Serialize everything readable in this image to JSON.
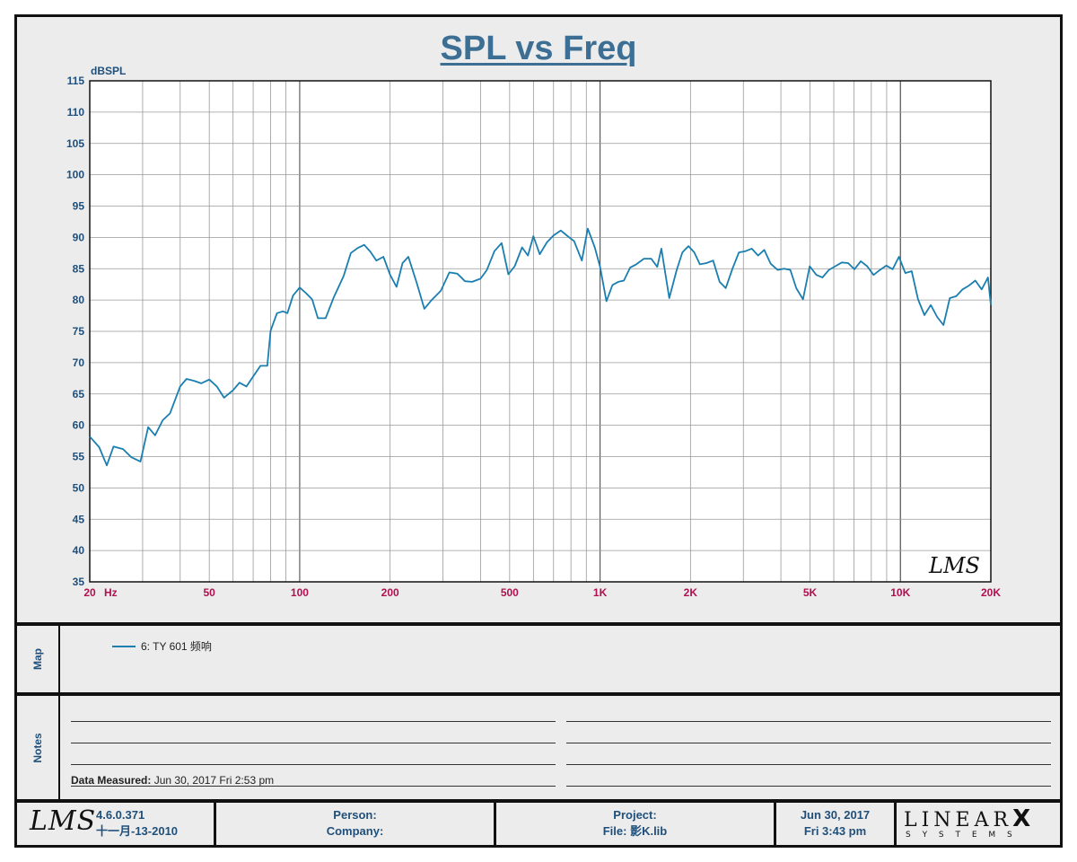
{
  "title": "SPL vs Freq",
  "chart_data": {
    "type": "line",
    "title": "SPL vs Freq",
    "ylabel": "dBSPL",
    "xlabel": "Hz",
    "x_scale": "log",
    "xlim": [
      20,
      20000
    ],
    "ylim": [
      35,
      115
    ],
    "y_ticks": [
      35,
      40,
      45,
      50,
      55,
      60,
      65,
      70,
      75,
      80,
      85,
      90,
      95,
      100,
      105,
      110,
      115
    ],
    "x_ticks": [
      {
        "value": 20,
        "label": "20"
      },
      {
        "value": 50,
        "label": "50"
      },
      {
        "value": 100,
        "label": "100"
      },
      {
        "value": 200,
        "label": "200"
      },
      {
        "value": 500,
        "label": "500"
      },
      {
        "value": 1000,
        "label": "1K"
      },
      {
        "value": 2000,
        "label": "2K"
      },
      {
        "value": 5000,
        "label": "5K"
      },
      {
        "value": 10000,
        "label": "10K"
      },
      {
        "value": 20000,
        "label": "20K"
      }
    ],
    "grid": true,
    "series": [
      {
        "name": "6: TY 601 频响",
        "color": "#1a7fb0",
        "points": [
          [
            20,
            58.2
          ],
          [
            21.5,
            56.5
          ],
          [
            22.8,
            53.6
          ],
          [
            24,
            56.6
          ],
          [
            25.8,
            56.2
          ],
          [
            27.5,
            54.9
          ],
          [
            29.5,
            54.2
          ],
          [
            31.3,
            59.7
          ],
          [
            33,
            58.4
          ],
          [
            35,
            60.8
          ],
          [
            37,
            61.9
          ],
          [
            40,
            66.2
          ],
          [
            42,
            67.4
          ],
          [
            44.5,
            67.1
          ],
          [
            47,
            66.7
          ],
          [
            50,
            67.3
          ],
          [
            53,
            66.2
          ],
          [
            56,
            64.4
          ],
          [
            60,
            65.6
          ],
          [
            63,
            66.8
          ],
          [
            66.5,
            66.2
          ],
          [
            70,
            67.8
          ],
          [
            74,
            69.5
          ],
          [
            78,
            69.5
          ],
          [
            80,
            75.1
          ],
          [
            84,
            77.9
          ],
          [
            88,
            78.2
          ],
          [
            91,
            77.9
          ],
          [
            95,
            80.7
          ],
          [
            100,
            82.0
          ],
          [
            105,
            81.1
          ],
          [
            110,
            80.1
          ],
          [
            115,
            77.1
          ],
          [
            122,
            77.1
          ],
          [
            130,
            80.5
          ],
          [
            140,
            83.8
          ],
          [
            148,
            87.5
          ],
          [
            156,
            88.3
          ],
          [
            164,
            88.8
          ],
          [
            172,
            87.7
          ],
          [
            180,
            86.3
          ],
          [
            190,
            86.9
          ],
          [
            200,
            84.0
          ],
          [
            210,
            82.1
          ],
          [
            220,
            85.9
          ],
          [
            230,
            86.9
          ],
          [
            245,
            82.8
          ],
          [
            260,
            78.6
          ],
          [
            275,
            80.0
          ],
          [
            295,
            81.5
          ],
          [
            315,
            84.4
          ],
          [
            335,
            84.2
          ],
          [
            355,
            83.0
          ],
          [
            375,
            82.9
          ],
          [
            400,
            83.4
          ],
          [
            420,
            84.8
          ],
          [
            445,
            87.8
          ],
          [
            470,
            89.1
          ],
          [
            495,
            84.1
          ],
          [
            520,
            85.4
          ],
          [
            550,
            88.4
          ],
          [
            575,
            87.1
          ],
          [
            600,
            90.2
          ],
          [
            630,
            87.3
          ],
          [
            665,
            89.2
          ],
          [
            700,
            90.3
          ],
          [
            740,
            91.1
          ],
          [
            780,
            90.2
          ],
          [
            820,
            89.4
          ],
          [
            870,
            86.3
          ],
          [
            910,
            91.4
          ],
          [
            960,
            88.4
          ],
          [
            1000,
            85.3
          ],
          [
            1050,
            79.8
          ],
          [
            1100,
            82.4
          ],
          [
            1150,
            82.9
          ],
          [
            1200,
            83.1
          ],
          [
            1260,
            85.2
          ],
          [
            1320,
            85.7
          ],
          [
            1400,
            86.6
          ],
          [
            1480,
            86.6
          ],
          [
            1550,
            85.3
          ],
          [
            1600,
            88.2
          ],
          [
            1700,
            80.3
          ],
          [
            1800,
            84.8
          ],
          [
            1880,
            87.6
          ],
          [
            1970,
            88.6
          ],
          [
            2060,
            87.6
          ],
          [
            2150,
            85.7
          ],
          [
            2260,
            85.9
          ],
          [
            2380,
            86.3
          ],
          [
            2500,
            82.9
          ],
          [
            2620,
            81.9
          ],
          [
            2760,
            85.0
          ],
          [
            2900,
            87.6
          ],
          [
            3050,
            87.8
          ],
          [
            3200,
            88.2
          ],
          [
            3360,
            87.1
          ],
          [
            3520,
            88.0
          ],
          [
            3700,
            85.8
          ],
          [
            3900,
            84.8
          ],
          [
            4100,
            85.0
          ],
          [
            4300,
            84.8
          ],
          [
            4500,
            81.9
          ],
          [
            4740,
            80.1
          ],
          [
            4990,
            85.4
          ],
          [
            5250,
            84.0
          ],
          [
            5500,
            83.6
          ],
          [
            5780,
            84.8
          ],
          [
            6070,
            85.4
          ],
          [
            6380,
            86.0
          ],
          [
            6700,
            85.9
          ],
          [
            7030,
            84.9
          ],
          [
            7380,
            86.2
          ],
          [
            7750,
            85.4
          ],
          [
            8140,
            84.0
          ],
          [
            8550,
            84.8
          ],
          [
            8980,
            85.5
          ],
          [
            9420,
            84.9
          ],
          [
            9890,
            86.9
          ],
          [
            10380,
            84.3
          ],
          [
            10900,
            84.6
          ],
          [
            11450,
            80.1
          ],
          [
            12020,
            77.6
          ],
          [
            12620,
            79.2
          ],
          [
            13250,
            77.3
          ],
          [
            13910,
            76.0
          ],
          [
            14600,
            80.3
          ],
          [
            15340,
            80.6
          ],
          [
            16100,
            81.7
          ],
          [
            16900,
            82.3
          ],
          [
            17750,
            83.1
          ],
          [
            18640,
            81.7
          ],
          [
            19570,
            83.6
          ],
          [
            20000,
            79.2
          ]
        ]
      }
    ]
  },
  "map": {
    "label": "Map",
    "entry": "6: TY 601 频响",
    "entry_color": "#1a7fb0"
  },
  "notes": {
    "label": "Notes",
    "measured_label": "Data Measured:",
    "measured_value": " Jun 30, 2017  Fri  2:53 pm"
  },
  "footer": {
    "logo": "LMS",
    "version": "4.6.0.371",
    "version_date": "十一月-13-2010",
    "person_label": "Person:",
    "company_label": "Company:",
    "project_label": "Project:",
    "file_label": "File: 影K.lib",
    "date": "Jun 30, 2017",
    "day_time": "Fri  3:43 pm",
    "brand_top": "LINEAR",
    "brand_x": "X",
    "brand_bottom": "S Y S T E M S"
  },
  "watermark": "LMS"
}
